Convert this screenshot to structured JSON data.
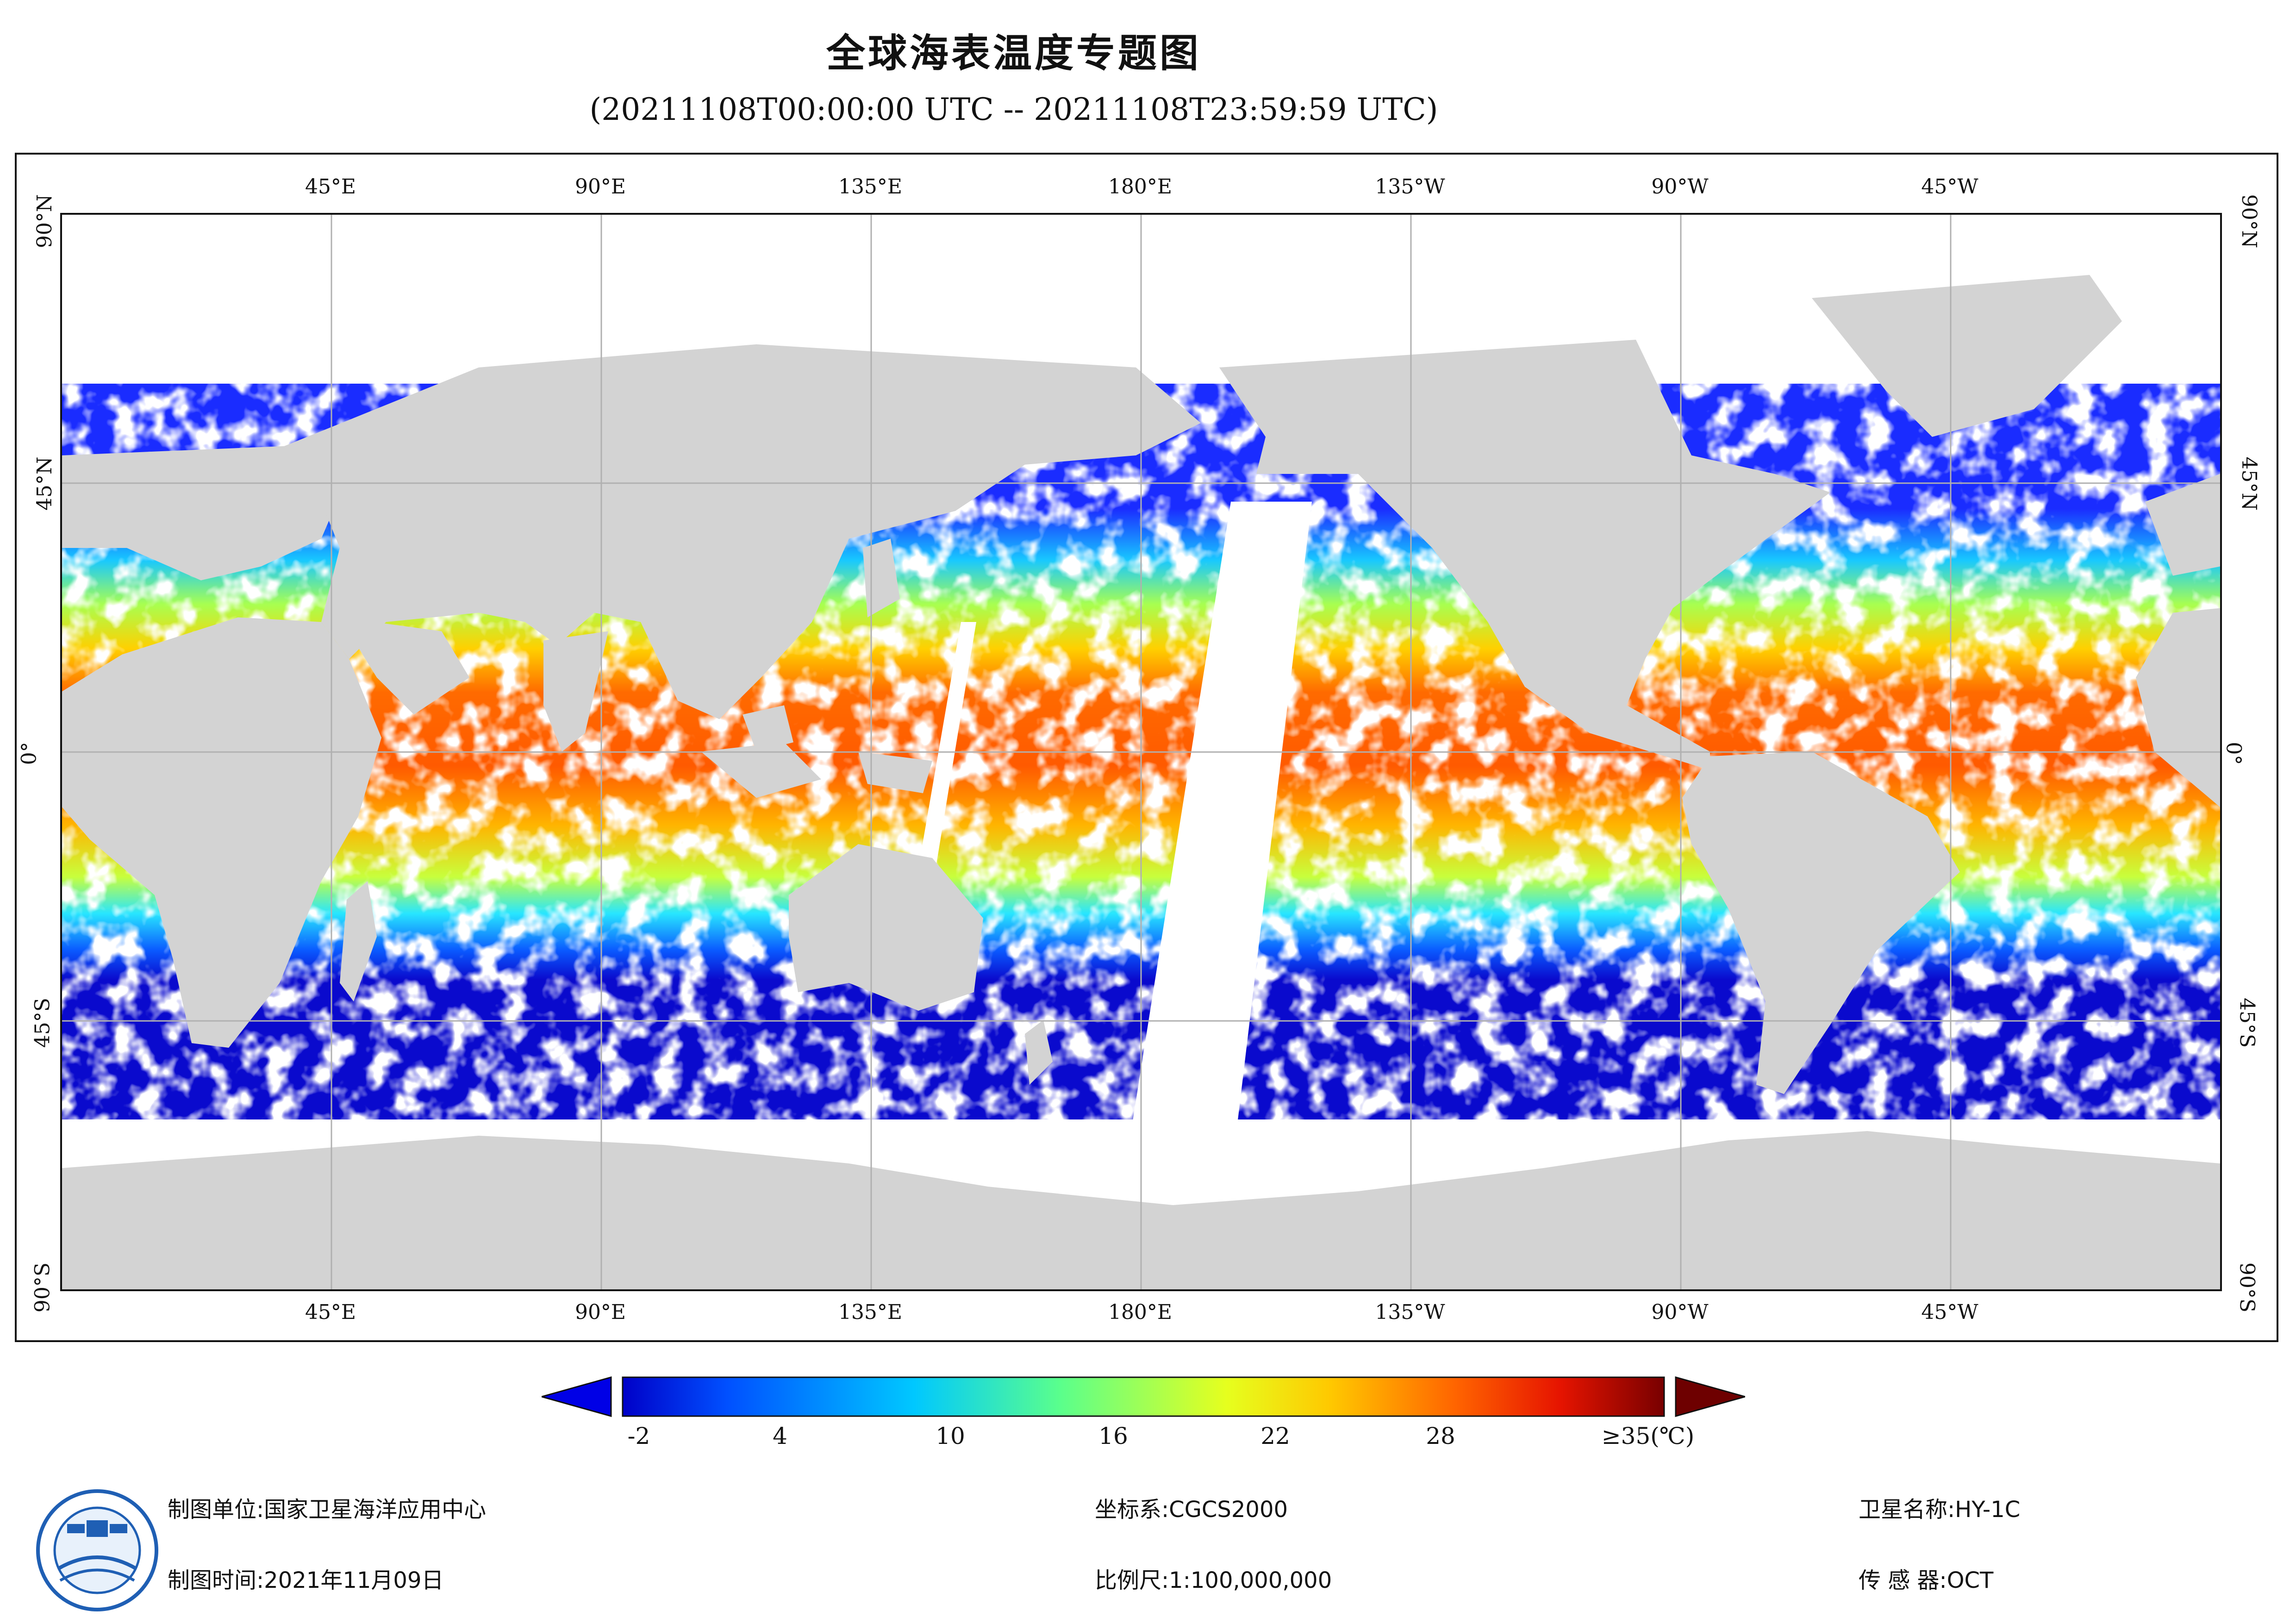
{
  "header": {
    "title": "全球海表温度专题图",
    "subtitle": "(20211108T00:00:00 UTC -- 20211108T23:59:59 UTC)"
  },
  "map": {
    "lon_labels": [
      "45°E",
      "90°E",
      "135°E",
      "180°E",
      "135°W",
      "90°W",
      "45°W"
    ],
    "lat_labels": [
      "90°N",
      "45°N",
      "0°",
      "45°S",
      "90°S"
    ],
    "land_color": "#d3d3d3",
    "nodata_color": "#ffffff",
    "gridline_color": "#b0b0b0"
  },
  "colorbar": {
    "ticks": [
      "-2",
      "4",
      "10",
      "16",
      "22",
      "28"
    ],
    "max_label": "≥35(℃)",
    "range": [
      -2,
      35
    ],
    "colors": [
      "#0000c8",
      "#0050ff",
      "#00c8ff",
      "#5aff8c",
      "#e6ff1e",
      "#ffc800",
      "#ff6400",
      "#e61400",
      "#780000"
    ]
  },
  "footer": {
    "producer": "制图单位:国家卫星海洋应用中心",
    "date": "制图时间:2021年11月09日",
    "crs": "坐标系:CGCS2000",
    "scale": "比例尺:1:100,000,000",
    "satellite": "卫星名称:HY-1C",
    "sensor": "传 感 器:OCT"
  }
}
